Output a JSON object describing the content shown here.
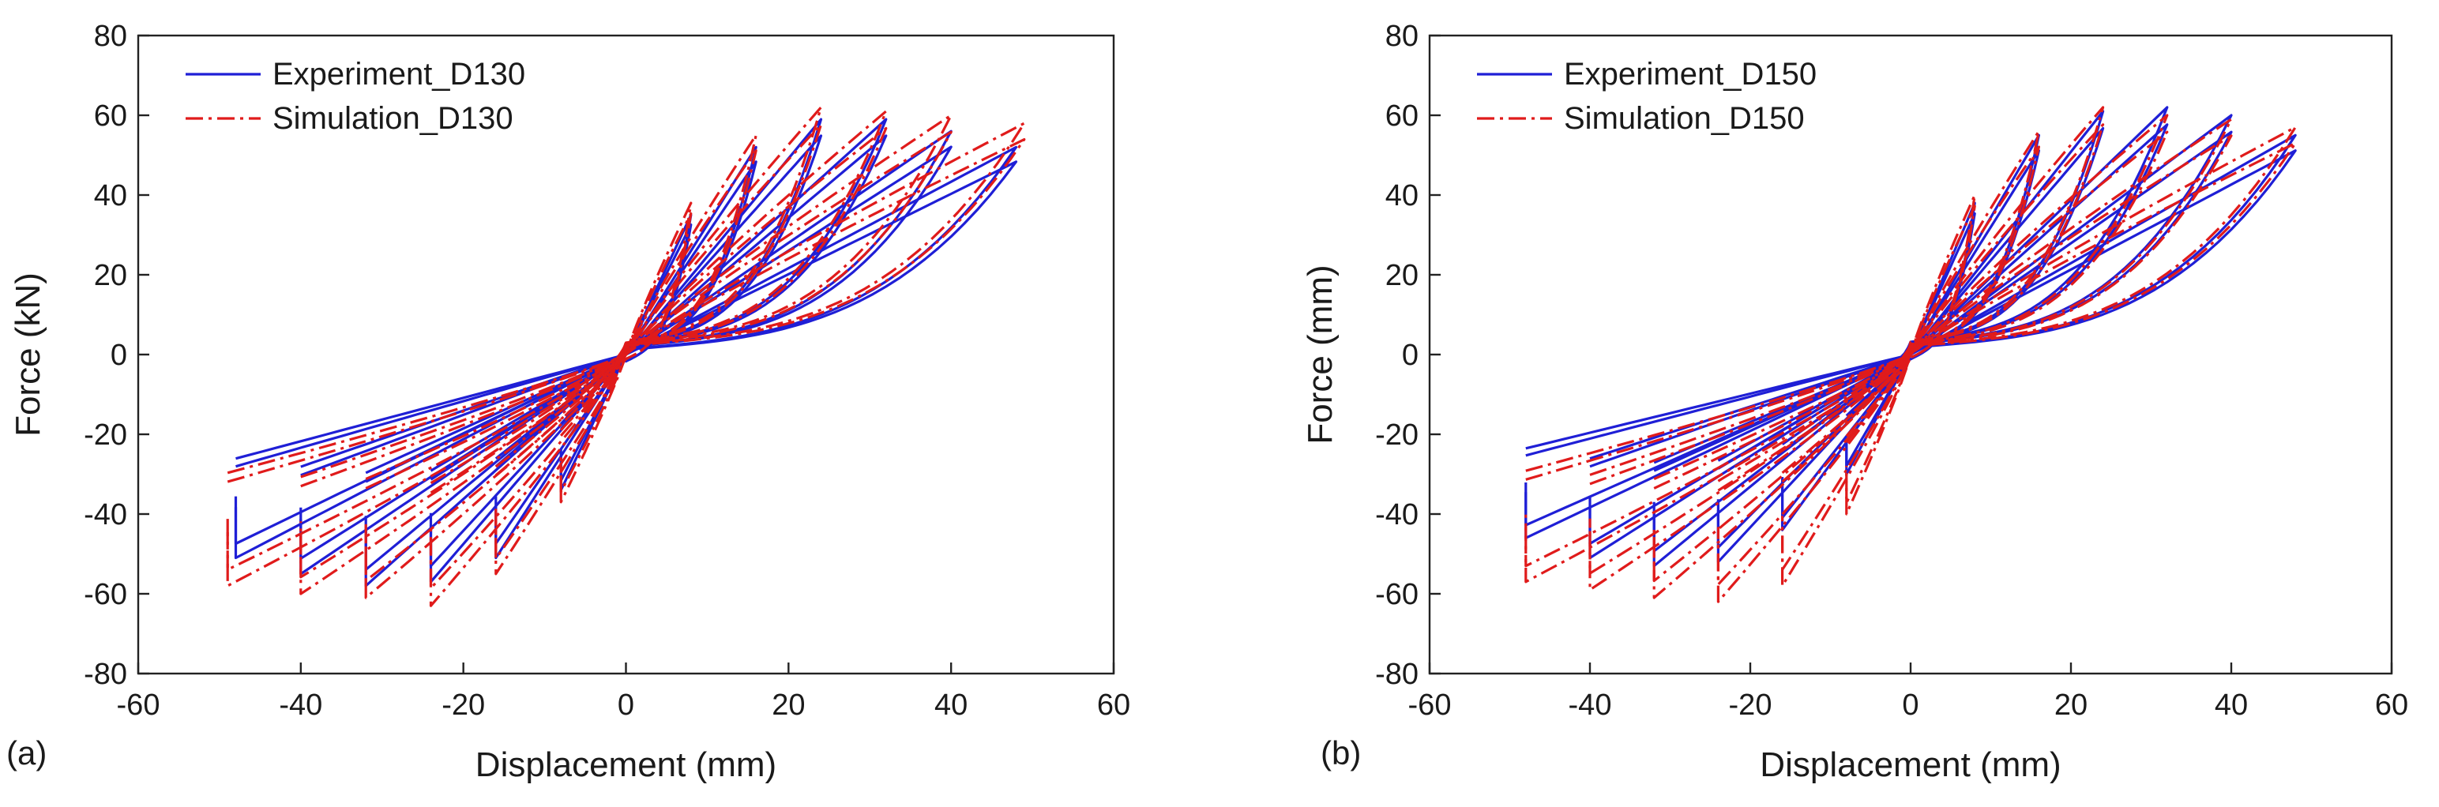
{
  "colors": {
    "experiment": "#1f1fd6",
    "simulation": "#e01b1b",
    "axis": "#222222"
  },
  "chart_data": [
    {
      "type": "line",
      "panel_label": "(a)",
      "xlabel": "Displacement (mm)",
      "ylabel": "Force (kN)",
      "xlim": [
        -60,
        60
      ],
      "ylim": [
        -80,
        80
      ],
      "xticks": [
        -60,
        -40,
        -20,
        0,
        20,
        40,
        60
      ],
      "yticks": [
        -80,
        -60,
        -40,
        -20,
        0,
        20,
        40,
        60,
        80
      ],
      "grid": false,
      "legend_position": "top-left",
      "series": [
        {
          "name": "Experiment_D130",
          "style": "solid",
          "color": "#1f1fd6",
          "cycles": [
            {
              "amplitude": 8,
              "peak_pos": 35,
              "peak_neg": -34
            },
            {
              "amplitude": 16,
              "peak_pos": 52,
              "peak_neg": -51
            },
            {
              "amplitude": 24,
              "peak_pos": 59,
              "peak_neg": -57
            },
            {
              "amplitude": 32,
              "peak_pos": 59,
              "peak_neg": -58
            },
            {
              "amplitude": 40,
              "peak_pos": 56,
              "peak_neg": -55
            },
            {
              "amplitude": 48,
              "peak_pos": 52,
              "peak_neg": -51
            }
          ]
        },
        {
          "name": "Simulation_D130",
          "style": "dash-dot",
          "color": "#e01b1b",
          "cycles": [
            {
              "amplitude": 8,
              "peak_pos": 38,
              "peak_neg": -37
            },
            {
              "amplitude": 16,
              "peak_pos": 55,
              "peak_neg": -55
            },
            {
              "amplitude": 24,
              "peak_pos": 62,
              "peak_neg": -63
            },
            {
              "amplitude": 32,
              "peak_pos": 61,
              "peak_neg": -61
            },
            {
              "amplitude": 40,
              "peak_pos": 60,
              "peak_neg": -60
            },
            {
              "amplitude": 49,
              "peak_pos": 58,
              "peak_neg": -58
            }
          ]
        }
      ]
    },
    {
      "type": "line",
      "panel_label": "(b)",
      "xlabel": "Displacement (mm)",
      "ylabel": "Force (mm)",
      "xlim": [
        -60,
        60
      ],
      "ylim": [
        -80,
        80
      ],
      "xticks": [
        -60,
        -40,
        -20,
        0,
        20,
        40,
        60
      ],
      "yticks": [
        -80,
        -60,
        -40,
        -20,
        0,
        20,
        40,
        60,
        80
      ],
      "grid": false,
      "legend_position": "top-left",
      "series": [
        {
          "name": "Experiment_D150",
          "style": "solid",
          "color": "#1f1fd6",
          "cycles": [
            {
              "amplitude": 8,
              "peak_pos": 38,
              "peak_neg": -30
            },
            {
              "amplitude": 16,
              "peak_pos": 55,
              "peak_neg": -44
            },
            {
              "amplitude": 24,
              "peak_pos": 61,
              "peak_neg": -52
            },
            {
              "amplitude": 32,
              "peak_pos": 62,
              "peak_neg": -53
            },
            {
              "amplitude": 40,
              "peak_pos": 60,
              "peak_neg": -51
            },
            {
              "amplitude": 48,
              "peak_pos": 55,
              "peak_neg": -46
            }
          ]
        },
        {
          "name": "Simulation_D150",
          "style": "dash-dot",
          "color": "#e01b1b",
          "cycles": [
            {
              "amplitude": 8,
              "peak_pos": 40,
              "peak_neg": -40
            },
            {
              "amplitude": 16,
              "peak_pos": 56,
              "peak_neg": -58
            },
            {
              "amplitude": 24,
              "peak_pos": 62,
              "peak_neg": -62
            },
            {
              "amplitude": 32,
              "peak_pos": 60,
              "peak_neg": -61
            },
            {
              "amplitude": 40,
              "peak_pos": 59,
              "peak_neg": -59
            },
            {
              "amplitude": 48,
              "peak_pos": 57,
              "peak_neg": -57
            }
          ]
        }
      ]
    }
  ]
}
